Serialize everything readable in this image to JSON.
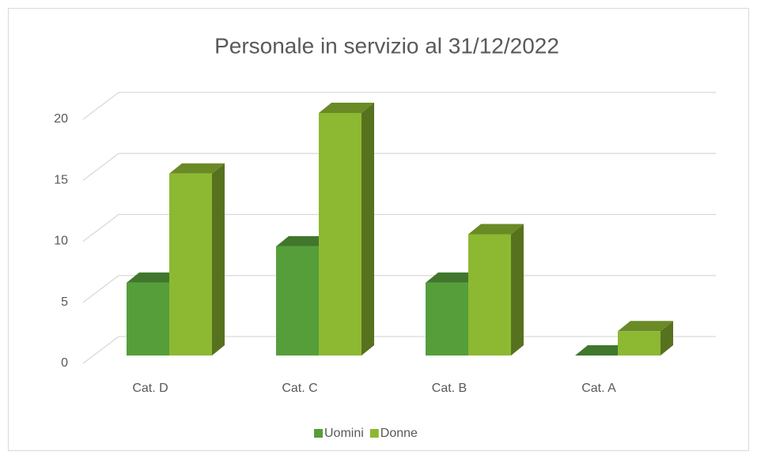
{
  "chart_data": {
    "type": "bar3d",
    "title": "Personale in servizio al 31/12/2022",
    "categories": [
      "Cat. D",
      "Cat. C",
      "Cat. B",
      "Cat. A"
    ],
    "series": [
      {
        "name": "Uomini",
        "color": "#559e3a",
        "values": [
          6,
          9,
          6,
          0
        ]
      },
      {
        "name": "Donne",
        "color": "#8db832",
        "values": [
          15,
          20,
          10,
          2
        ]
      }
    ],
    "ylim": [
      0,
      20
    ],
    "yticks": [
      0,
      5,
      10,
      15,
      20
    ],
    "grid": true,
    "legend": "bottom"
  }
}
